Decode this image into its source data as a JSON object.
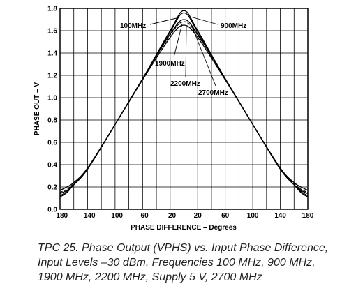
{
  "chart_data": {
    "type": "line",
    "xlabel": "PHASE DIFFERENCE – Degrees",
    "ylabel": "PHASE OUT – V",
    "xlim": [
      -180,
      180
    ],
    "ylim": [
      0,
      1.8
    ],
    "x_ticks": [
      "–180",
      "–140",
      "–100",
      "–60",
      "–20",
      "20",
      "60",
      "100",
      "140",
      "180"
    ],
    "y_ticks": [
      "0.0",
      "0.2",
      "0.4",
      "0.6",
      "0.8",
      "1.0",
      "1.2",
      "1.4",
      "1.6",
      "1.8"
    ],
    "grid": true,
    "series": [
      {
        "name": "100MHz",
        "x": [
          -180,
          -170,
          -160,
          -140,
          -100,
          -60,
          -20,
          0,
          20,
          60,
          100,
          140,
          160,
          170,
          180
        ],
        "y": [
          0.11,
          0.15,
          0.22,
          0.36,
          0.76,
          1.17,
          1.59,
          1.76,
          1.59,
          1.17,
          0.76,
          0.36,
          0.22,
          0.15,
          0.11
        ]
      },
      {
        "name": "900MHz",
        "x": [
          -180,
          -170,
          -160,
          -140,
          -100,
          -60,
          -20,
          0,
          20,
          60,
          100,
          140,
          160,
          170,
          180
        ],
        "y": [
          0.12,
          0.16,
          0.22,
          0.36,
          0.76,
          1.17,
          1.6,
          1.78,
          1.6,
          1.17,
          0.76,
          0.36,
          0.22,
          0.16,
          0.12
        ]
      },
      {
        "name": "1900MHz",
        "x": [
          -180,
          -170,
          -160,
          -140,
          -100,
          -60,
          -20,
          0,
          20,
          60,
          100,
          140,
          160,
          170,
          180
        ],
        "y": [
          0.14,
          0.17,
          0.22,
          0.36,
          0.76,
          1.17,
          1.57,
          1.7,
          1.57,
          1.17,
          0.76,
          0.36,
          0.22,
          0.17,
          0.14
        ]
      },
      {
        "name": "2200MHz",
        "x": [
          -180,
          -170,
          -160,
          -140,
          -100,
          -60,
          -20,
          0,
          20,
          60,
          100,
          140,
          160,
          170,
          180
        ],
        "y": [
          0.15,
          0.18,
          0.23,
          0.36,
          0.76,
          1.17,
          1.56,
          1.68,
          1.56,
          1.17,
          0.76,
          0.36,
          0.23,
          0.18,
          0.15
        ]
      },
      {
        "name": "2700MHz",
        "x": [
          -180,
          -170,
          -160,
          -140,
          -100,
          -60,
          -20,
          0,
          20,
          60,
          100,
          140,
          160,
          170,
          180
        ],
        "y": [
          0.17,
          0.2,
          0.24,
          0.37,
          0.76,
          1.16,
          1.54,
          1.65,
          1.54,
          1.16,
          0.76,
          0.37,
          0.24,
          0.2,
          0.17
        ]
      }
    ],
    "annotations": [
      "100MHz",
      "900MHz",
      "1900MHz",
      "2200MHz",
      "2700MHz"
    ]
  },
  "caption": {
    "lines": [
      "TPC 25.  Phase Output (VPHS) vs. Input Phase Difference,",
      "Input Levels –30 dBm, Frequencies 100 MHz, 900 MHz,",
      "1900 MHz, 2200 MHz, Supply 5 V, 2700 MHz"
    ]
  }
}
